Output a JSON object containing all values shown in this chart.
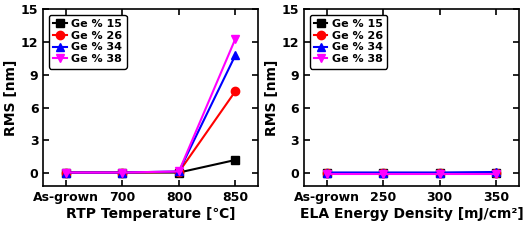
{
  "rtp": {
    "x_labels": [
      "As-grown",
      "700",
      "800",
      "850"
    ],
    "x_positions": [
      0,
      1,
      2,
      3
    ],
    "series": [
      {
        "label": "Ge % 15",
        "color": "#000000",
        "marker": "s",
        "markersize": 6,
        "linestyle": "-",
        "linewidth": 1.5,
        "y": [
          0.05,
          0.05,
          0.05,
          1.2
        ]
      },
      {
        "label": "Ge % 26",
        "color": "#ff0000",
        "marker": "o",
        "markersize": 6,
        "linestyle": "-",
        "linewidth": 1.5,
        "y": [
          0.05,
          0.05,
          0.1,
          7.5
        ]
      },
      {
        "label": "Ge % 34",
        "color": "#0000ff",
        "marker": "^",
        "markersize": 6,
        "linestyle": "-",
        "linewidth": 1.5,
        "y": [
          0.05,
          0.05,
          0.15,
          10.8
        ]
      },
      {
        "label": "Ge % 38",
        "color": "#ff00ff",
        "marker": "v",
        "markersize": 6,
        "linestyle": "-",
        "linewidth": 1.5,
        "y": [
          0.05,
          0.05,
          0.15,
          12.3
        ]
      }
    ],
    "xlabel": "RTP Temperature [℃]",
    "ylabel": "RMS [nm]",
    "ylim": [
      -1.2,
      15
    ],
    "yticks": [
      0,
      3,
      6,
      9,
      12,
      15
    ]
  },
  "ela": {
    "x_labels": [
      "As-grown",
      "250",
      "300",
      "350"
    ],
    "x_positions": [
      0,
      1,
      2,
      3
    ],
    "series": [
      {
        "label": "Ge % 15",
        "color": "#000000",
        "marker": "s",
        "markersize": 6,
        "linestyle": "-",
        "linewidth": 1.5,
        "y": [
          0.05,
          0.05,
          0.05,
          0.05
        ]
      },
      {
        "label": "Ge % 26",
        "color": "#ff0000",
        "marker": "o",
        "markersize": 6,
        "linestyle": "-",
        "linewidth": 1.5,
        "y": [
          0.0,
          0.0,
          0.0,
          0.0
        ]
      },
      {
        "label": "Ge % 34",
        "color": "#0000ff",
        "marker": "^",
        "markersize": 6,
        "linestyle": "-",
        "linewidth": 1.5,
        "y": [
          0.05,
          0.05,
          0.05,
          0.1
        ]
      },
      {
        "label": "Ge % 38",
        "color": "#ff00ff",
        "marker": "v",
        "markersize": 6,
        "linestyle": "-",
        "linewidth": 1.5,
        "y": [
          -0.1,
          -0.1,
          -0.1,
          -0.1
        ]
      }
    ],
    "xlabel": "ELA Energy Density [mJ/cm²]",
    "ylabel": "RMS [nm]",
    "ylim": [
      -1.2,
      15
    ],
    "yticks": [
      0,
      3,
      6,
      9,
      12,
      15
    ]
  },
  "background_color": "#ffffff",
  "tick_fontsize": 9,
  "label_fontsize": 10,
  "legend_fontsize": 8
}
